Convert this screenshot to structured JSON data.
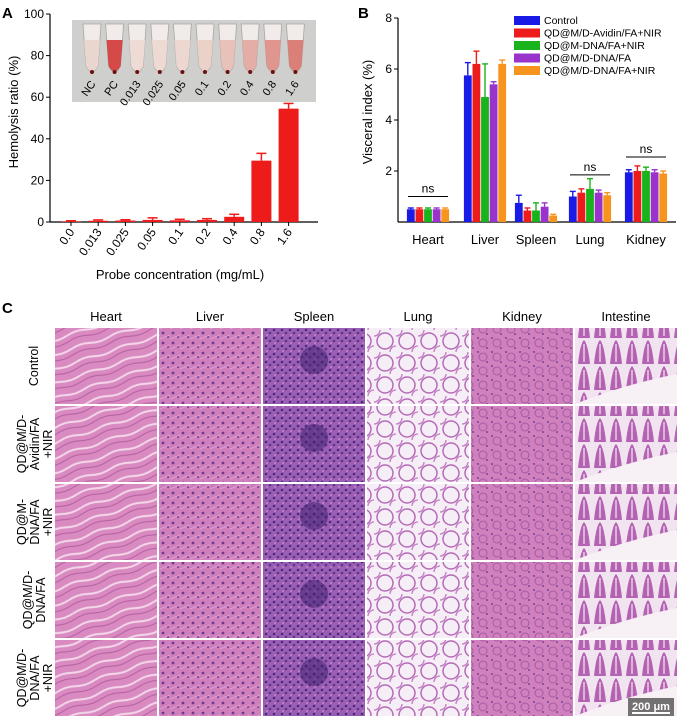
{
  "panel_labels": {
    "a": "A",
    "b": "B",
    "c": "C"
  },
  "inset": {
    "labels": [
      "NC",
      "PC",
      "0.013",
      "0.025",
      "0.05",
      "0.1",
      "0.2",
      "0.4",
      "0.8",
      "1.6"
    ],
    "tube_colors": [
      "#e8d5cc",
      "#d23b3b",
      "#eed9d2",
      "#edd8d0",
      "#ecd6ce",
      "#e9cfc6",
      "#e7bdb4",
      "#e3a79f",
      "#de8d86",
      "#d9766f"
    ]
  },
  "colors": {
    "panel_a_bar": "#ee1b1b",
    "control": "#1a1ae6",
    "avidin": "#ee1b1b",
    "dna_nir": "#19b31c",
    "dna_fa": "#9a33cc",
    "dna_fa_nir": "#f7941d"
  },
  "chart_data": [
    {
      "type": "bar",
      "title": "",
      "xlabel": "Probe concentration (mg/mL)",
      "ylabel": "Hemolysis ratio (%)",
      "ylim": [
        0,
        100
      ],
      "yticks": [
        "0",
        "20",
        "40",
        "60",
        "80",
        "100"
      ],
      "categories": [
        "0.0",
        "0.013",
        "0.025",
        "0.05",
        "0.1",
        "0.2",
        "0.4",
        "0.8",
        "1.6"
      ],
      "values": [
        0.3,
        0.6,
        0.7,
        1.0,
        0.8,
        1.0,
        2.5,
        29.5,
        54.5
      ],
      "errors": [
        0.3,
        0.4,
        0.4,
        1.0,
        0.5,
        0.6,
        1.2,
        3.5,
        2.5
      ]
    },
    {
      "type": "bar",
      "title": "",
      "xlabel": "",
      "ylabel": "Visceral index (%)",
      "ylim": [
        0,
        8
      ],
      "yticks": [
        "2",
        "4",
        "6",
        "8"
      ],
      "categories": [
        "Heart",
        "Liver",
        "Spleen",
        "Lung",
        "Kidney"
      ],
      "series": [
        {
          "name": "Control",
          "color_key": "control",
          "values": [
            0.5,
            5.75,
            0.75,
            1.0,
            1.95
          ],
          "errors": [
            0.05,
            0.5,
            0.3,
            0.2,
            0.1
          ]
        },
        {
          "name": "QD@M/D-Avidin/FA+NIR",
          "color_key": "avidin",
          "values": [
            0.5,
            6.2,
            0.45,
            1.15,
            2.0
          ],
          "errors": [
            0.05,
            0.5,
            0.1,
            0.15,
            0.2
          ]
        },
        {
          "name": "QD@M-DNA/FA+NIR",
          "color_key": "dna_nir",
          "values": [
            0.5,
            4.9,
            0.45,
            1.3,
            2.0
          ],
          "errors": [
            0.05,
            1.3,
            0.3,
            0.4,
            0.15
          ]
        },
        {
          "name": "QD@M/D-DNA/FA",
          "color_key": "dna_fa",
          "values": [
            0.5,
            5.4,
            0.6,
            1.15,
            1.95
          ],
          "errors": [
            0.05,
            0.1,
            0.15,
            0.1,
            0.1
          ]
        },
        {
          "name": "QD@M/D-DNA/FA+NIR",
          "color_key": "dna_fa_nir",
          "values": [
            0.5,
            6.2,
            0.25,
            1.05,
            1.9
          ],
          "errors": [
            0.05,
            0.15,
            0.05,
            0.1,
            0.1
          ]
        }
      ],
      "annotations": [
        "ns",
        "ns",
        "ns"
      ]
    }
  ],
  "panel_c": {
    "columns": [
      "Heart",
      "Liver",
      "Spleen",
      "Lung",
      "Kidney",
      "Intestine"
    ],
    "rows": [
      {
        "lines": [
          "Control"
        ]
      },
      {
        "lines": [
          "QD@M/D-",
          "Avidin/FA",
          "+NIR"
        ]
      },
      {
        "lines": [
          "QD@M-",
          "DNA/FA",
          "+NIR"
        ]
      },
      {
        "lines": [
          "QD@M/D-",
          "DNA/FA"
        ]
      },
      {
        "lines": [
          "QD@M/D-",
          "DNA/FA",
          "+NIR"
        ]
      }
    ],
    "scale_bar": "200 μm"
  }
}
